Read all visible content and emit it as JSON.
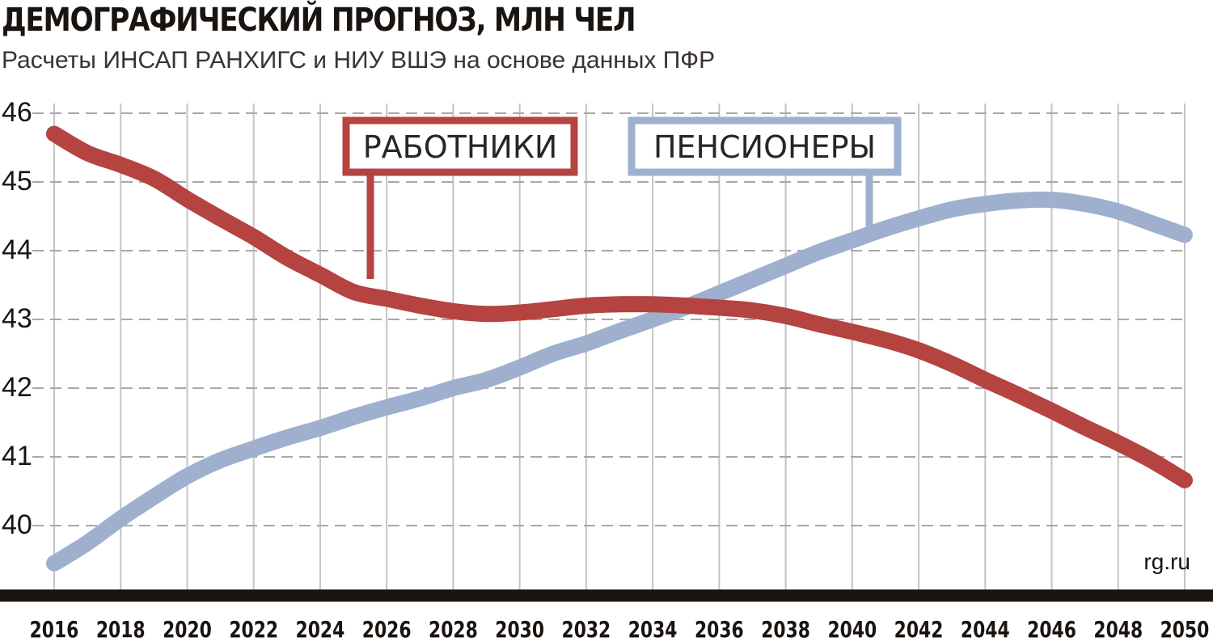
{
  "chart_data": {
    "type": "line",
    "title": "ДЕМОГРАФИЧЕСКИЙ ПРОГНОЗ, МЛН ЧЕЛ",
    "subtitle": "Расчеты ИНСАП РАНХИГС и НИУ ВШЭ на основе данных ПФР",
    "source": "rg.ru",
    "xlim": [
      2016,
      2050
    ],
    "ylim": [
      39.3,
      46
    ],
    "x_ticks": [
      "2016",
      "2018",
      "2020",
      "2022",
      "2024",
      "2026",
      "2028",
      "2030",
      "2032",
      "2034",
      "2036",
      "2038",
      "2040",
      "2042",
      "2044",
      "2046",
      "2048",
      "2050"
    ],
    "y_ticks": [
      "40",
      "41",
      "42",
      "43",
      "44",
      "45",
      "46"
    ],
    "grid": true,
    "series": [
      {
        "name": "РАБОТНИКИ",
        "color": "#b5433f",
        "x": [
          2016,
          2017,
          2018,
          2019,
          2020,
          2021,
          2022,
          2023,
          2024,
          2025,
          2026,
          2027,
          2028,
          2029,
          2030,
          2031,
          2032,
          2033,
          2034,
          2035,
          2036,
          2037,
          2038,
          2039,
          2040,
          2041,
          2042,
          2043,
          2044,
          2045,
          2046,
          2047,
          2048,
          2049,
          2050
        ],
        "values": [
          45.7,
          45.42,
          45.25,
          45.05,
          44.75,
          44.47,
          44.2,
          43.9,
          43.65,
          43.4,
          43.3,
          43.2,
          43.12,
          43.08,
          43.1,
          43.15,
          43.2,
          43.22,
          43.22,
          43.2,
          43.17,
          43.13,
          43.05,
          42.93,
          42.82,
          42.7,
          42.55,
          42.35,
          42.12,
          41.9,
          41.67,
          41.43,
          41.2,
          40.95,
          40.66
        ]
      },
      {
        "name": "ПЕНСИОНЕРЫ",
        "color": "#9fb0cf",
        "x": [
          2016,
          2017,
          2018,
          2019,
          2020,
          2021,
          2022,
          2023,
          2024,
          2025,
          2026,
          2027,
          2028,
          2029,
          2030,
          2031,
          2032,
          2033,
          2034,
          2035,
          2036,
          2037,
          2038,
          2039,
          2040,
          2041,
          2042,
          2043,
          2044,
          2045,
          2046,
          2047,
          2048,
          2049,
          2050
        ],
        "values": [
          39.45,
          39.75,
          40.1,
          40.42,
          40.72,
          40.95,
          41.12,
          41.28,
          41.42,
          41.58,
          41.72,
          41.85,
          42.0,
          42.12,
          42.3,
          42.5,
          42.65,
          42.83,
          43.0,
          43.18,
          43.38,
          43.58,
          43.78,
          43.98,
          44.15,
          44.32,
          44.47,
          44.6,
          44.68,
          44.73,
          44.74,
          44.68,
          44.57,
          44.4,
          44.23
        ]
      }
    ]
  }
}
